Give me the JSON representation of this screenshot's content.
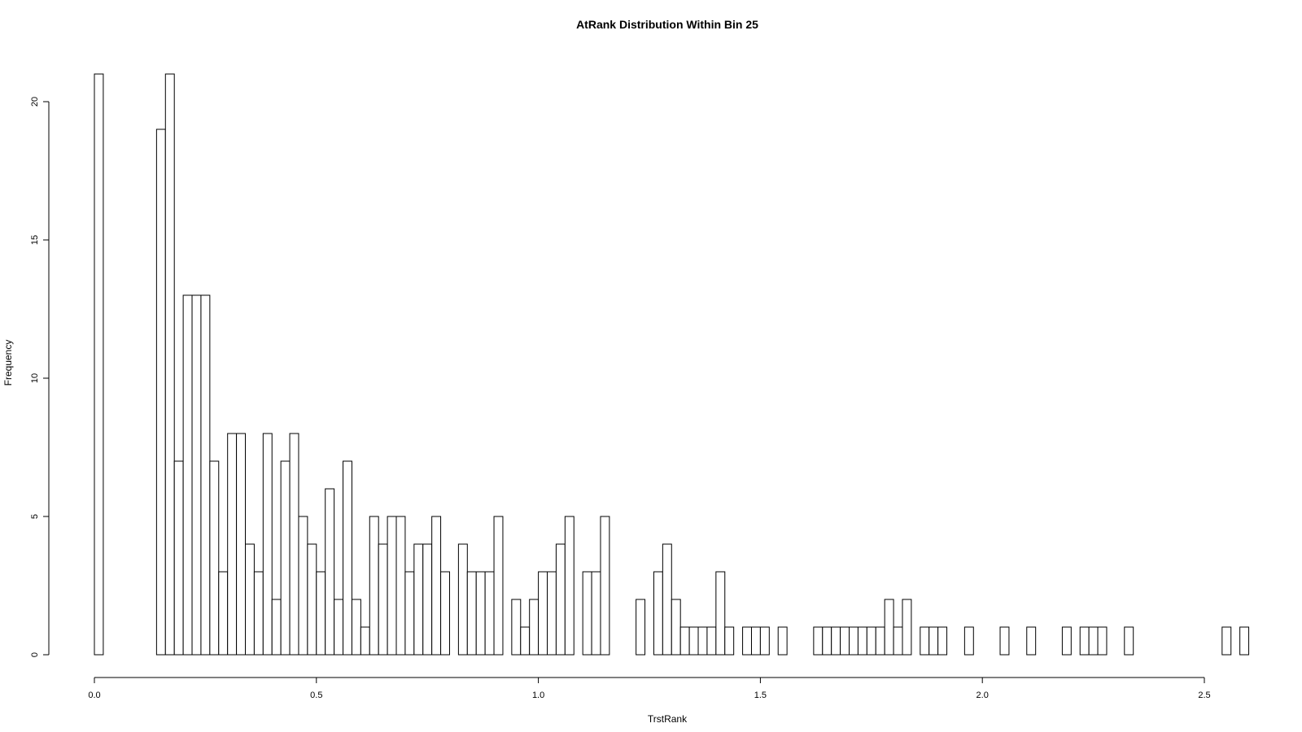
{
  "chart_data": {
    "type": "bar",
    "title": "AtRank Distribution Within Bin 25",
    "xlabel": "TrstRank",
    "ylabel": "Frequency",
    "bin_start": 0.0,
    "bin_width": 0.02,
    "values": [
      21,
      0,
      0,
      0,
      0,
      0,
      0,
      19,
      21,
      7,
      13,
      13,
      13,
      7,
      3,
      8,
      8,
      4,
      3,
      8,
      2,
      7,
      8,
      5,
      4,
      3,
      6,
      2,
      7,
      2,
      1,
      5,
      4,
      5,
      5,
      3,
      4,
      4,
      5,
      3,
      0,
      4,
      3,
      3,
      3,
      5,
      0,
      2,
      1,
      2,
      3,
      3,
      4,
      5,
      0,
      3,
      3,
      5,
      0,
      0,
      0,
      2,
      0,
      3,
      4,
      2,
      1,
      1,
      1,
      1,
      3,
      1,
      0,
      1,
      1,
      1,
      0,
      1,
      0,
      0,
      0,
      1,
      1,
      1,
      1,
      1,
      1,
      1,
      1,
      2,
      1,
      2,
      0,
      1,
      1,
      1,
      0,
      0,
      1,
      0,
      0,
      0,
      1,
      0,
      0,
      1,
      0,
      0,
      0,
      1,
      0,
      1,
      1,
      1,
      0,
      0,
      1,
      0,
      0,
      0,
      0,
      0,
      0,
      0,
      0,
      0,
      0,
      1,
      0,
      1
    ],
    "xlim": [
      0.0,
      2.6
    ],
    "ylim": [
      0,
      21
    ],
    "xticks": [
      "0.0",
      "0.5",
      "1.0",
      "1.5",
      "2.0",
      "2.5"
    ],
    "yticks": [
      "0",
      "5",
      "10",
      "15",
      "20"
    ],
    "grid": false,
    "legend": "none"
  }
}
